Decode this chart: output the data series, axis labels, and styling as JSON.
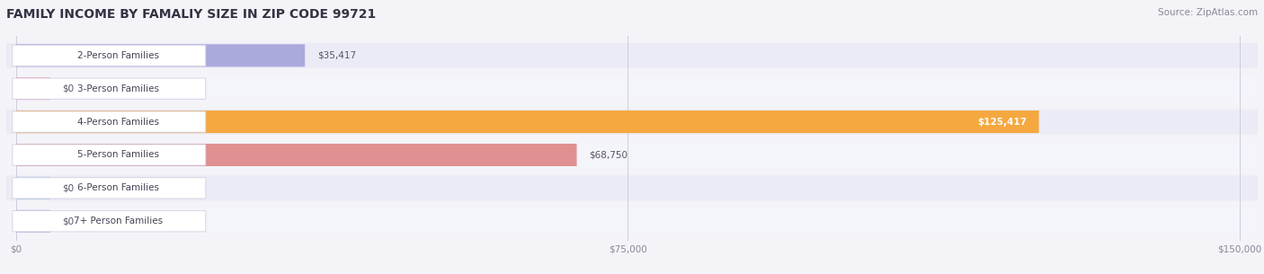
{
  "title": "FAMILY INCOME BY FAMALIY SIZE IN ZIP CODE 99721",
  "source": "Source: ZipAtlas.com",
  "categories": [
    "2-Person Families",
    "3-Person Families",
    "4-Person Families",
    "5-Person Families",
    "6-Person Families",
    "7+ Person Families"
  ],
  "values": [
    35417,
    0,
    125417,
    68750,
    0,
    0
  ],
  "bar_colors": [
    "#aaaadd",
    "#f4a0b8",
    "#f5a840",
    "#e09090",
    "#a8c8e8",
    "#c4a8d8"
  ],
  "label_colors": [
    "#333333",
    "#333333",
    "#ffffff",
    "#333333",
    "#333333",
    "#333333"
  ],
  "xlim_max": 150000,
  "xtick_values": [
    0,
    75000,
    150000
  ],
  "xtick_labels": [
    "$0",
    "$75,000",
    "$150,000"
  ],
  "background_color": "#f4f4f8",
  "bar_bg_color": "#e4e4ee",
  "row_bg_even": "#ebebf5",
  "row_bg_odd": "#f4f4fb",
  "title_fontsize": 10,
  "source_fontsize": 7.5,
  "cat_fontsize": 7.5,
  "tick_fontsize": 7.5,
  "val_fontsize": 7.5,
  "value_labels": [
    "$35,417",
    "$0",
    "$125,417",
    "$68,750",
    "$0",
    "$0"
  ]
}
